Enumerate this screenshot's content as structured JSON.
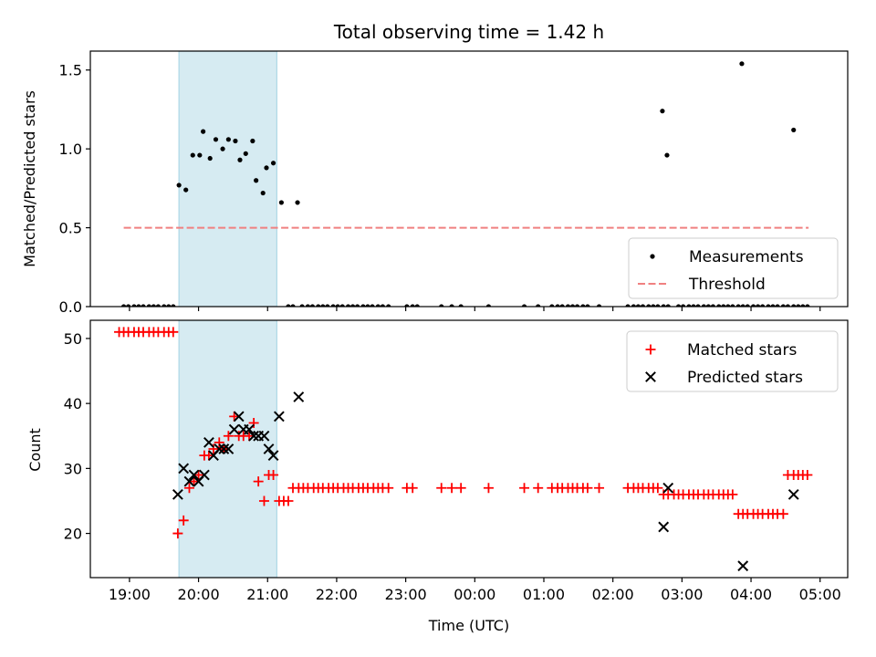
{
  "chart_data": [
    {
      "type": "scatter",
      "title": "Total observing time = 1.42 h",
      "xlabel": "",
      "ylabel": "Matched/Predicted stars",
      "ylim": [
        0,
        1.62
      ],
      "yticks": [
        "0.0",
        "0.5",
        "1.0",
        "1.5"
      ],
      "xlim": [
        "18:26",
        "05:24"
      ],
      "highlight_span": [
        "19:43",
        "21:08"
      ],
      "legend_position": "lower-right",
      "series": [
        {
          "name": "Measurements",
          "marker": "dot",
          "color": "#000000",
          "points": [
            [
              "18:55",
              0
            ],
            [
              "18:59",
              0
            ],
            [
              "19:04",
              0
            ],
            [
              "19:08",
              0
            ],
            [
              "19:12",
              0
            ],
            [
              "19:17",
              0
            ],
            [
              "19:21",
              0
            ],
            [
              "19:25",
              0
            ],
            [
              "19:30",
              0
            ],
            [
              "19:34",
              0
            ],
            [
              "19:38",
              0
            ],
            [
              "19:43",
              0.77
            ],
            [
              "19:49",
              0.74
            ],
            [
              "19:55",
              0.96
            ],
            [
              "20:01",
              0.96
            ],
            [
              "20:04",
              1.11
            ],
            [
              "20:10",
              0.94
            ],
            [
              "20:15",
              1.06
            ],
            [
              "20:21",
              1.0
            ],
            [
              "20:26",
              1.06
            ],
            [
              "20:32",
              1.05
            ],
            [
              "20:36",
              0.93
            ],
            [
              "20:41",
              0.97
            ],
            [
              "20:47",
              1.05
            ],
            [
              "20:50",
              0.8
            ],
            [
              "20:56",
              0.72
            ],
            [
              "20:59",
              0.88
            ],
            [
              "21:05",
              0.91
            ],
            [
              "21:12",
              0.66
            ],
            [
              "21:26",
              0.66
            ],
            [
              "21:18",
              0
            ],
            [
              "21:22",
              0
            ],
            [
              "21:30",
              0
            ],
            [
              "21:35",
              0
            ],
            [
              "21:39",
              0
            ],
            [
              "21:44",
              0
            ],
            [
              "21:48",
              0
            ],
            [
              "21:52",
              0
            ],
            [
              "21:57",
              0
            ],
            [
              "22:01",
              0
            ],
            [
              "22:05",
              0
            ],
            [
              "22:10",
              0
            ],
            [
              "22:14",
              0
            ],
            [
              "22:18",
              0
            ],
            [
              "22:23",
              0
            ],
            [
              "22:27",
              0
            ],
            [
              "22:31",
              0
            ],
            [
              "22:36",
              0
            ],
            [
              "22:40",
              0
            ],
            [
              "22:45",
              0
            ],
            [
              "23:01",
              0
            ],
            [
              "23:06",
              0
            ],
            [
              "23:10",
              0
            ],
            [
              "23:31",
              0
            ],
            [
              "23:40",
              0
            ],
            [
              "23:48",
              0
            ],
            [
              "00:12",
              0
            ],
            [
              "00:43",
              0
            ],
            [
              "00:55",
              0
            ],
            [
              "01:07",
              0
            ],
            [
              "01:12",
              0
            ],
            [
              "01:16",
              0
            ],
            [
              "01:21",
              0
            ],
            [
              "01:25",
              0
            ],
            [
              "01:29",
              0
            ],
            [
              "01:34",
              0
            ],
            [
              "01:38",
              0
            ],
            [
              "01:48",
              0
            ],
            [
              "02:13",
              0
            ],
            [
              "02:18",
              0
            ],
            [
              "02:22",
              0
            ],
            [
              "02:26",
              0
            ],
            [
              "02:31",
              0
            ],
            [
              "02:35",
              0
            ],
            [
              "02:39",
              0
            ],
            [
              "02:44",
              0
            ],
            [
              "02:48",
              0
            ],
            [
              "02:57",
              0
            ],
            [
              "03:01",
              0
            ],
            [
              "03:06",
              0
            ],
            [
              "03:10",
              0
            ],
            [
              "03:14",
              0
            ],
            [
              "03:19",
              0
            ],
            [
              "03:23",
              0
            ],
            [
              "03:27",
              0
            ],
            [
              "03:32",
              0
            ],
            [
              "03:36",
              0
            ],
            [
              "03:40",
              0
            ],
            [
              "03:44",
              0
            ],
            [
              "03:49",
              0
            ],
            [
              "03:53",
              0
            ],
            [
              "03:57",
              0
            ],
            [
              "04:02",
              0
            ],
            [
              "04:06",
              0
            ],
            [
              "04:10",
              0
            ],
            [
              "04:15",
              0
            ],
            [
              "04:19",
              0
            ],
            [
              "04:23",
              0
            ],
            [
              "04:28",
              0
            ],
            [
              "04:32",
              0
            ],
            [
              "04:37",
              0
            ],
            [
              "04:41",
              0
            ],
            [
              "04:45",
              0
            ],
            [
              "04:49",
              0
            ],
            [
              "02:43",
              1.24
            ],
            [
              "02:47",
              0.96
            ],
            [
              "03:52",
              1.54
            ],
            [
              "04:37",
              1.12
            ]
          ]
        },
        {
          "name": "Threshold",
          "marker": "dashed-line",
          "color": "#f08080",
          "x": [
            "18:55",
            "04:50"
          ],
          "y": [
            0.5,
            0.5
          ]
        }
      ]
    },
    {
      "type": "scatter",
      "title": "",
      "xlabel": "Time (UTC)",
      "ylabel": "Count",
      "ylim": [
        13.2,
        52.8
      ],
      "yticks": [
        "20",
        "30",
        "40",
        "50"
      ],
      "xlim": [
        "18:26",
        "05:24"
      ],
      "xticks": [
        "19:00",
        "20:00",
        "21:00",
        "22:00",
        "23:00",
        "00:00",
        "01:00",
        "02:00",
        "03:00",
        "04:00",
        "05:00"
      ],
      "highlight_span": [
        "19:43",
        "21:08"
      ],
      "legend_position": "upper-right",
      "series": [
        {
          "name": "Matched stars",
          "marker": "plus",
          "color": "#ff0000",
          "points": [
            [
              "18:51",
              51
            ],
            [
              "18:55",
              51
            ],
            [
              "18:59",
              51
            ],
            [
              "19:04",
              51
            ],
            [
              "19:08",
              51
            ],
            [
              "19:12",
              51
            ],
            [
              "19:17",
              51
            ],
            [
              "19:21",
              51
            ],
            [
              "19:25",
              51
            ],
            [
              "19:30",
              51
            ],
            [
              "19:34",
              51
            ],
            [
              "19:38",
              51
            ],
            [
              "19:42",
              20
            ],
            [
              "19:47",
              22
            ],
            [
              "19:52",
              27
            ],
            [
              "19:56",
              28
            ],
            [
              "20:00",
              29
            ],
            [
              "20:05",
              32
            ],
            [
              "20:09",
              32
            ],
            [
              "20:13",
              33
            ],
            [
              "20:18",
              34
            ],
            [
              "20:22",
              33
            ],
            [
              "20:26",
              35
            ],
            [
              "20:31",
              38
            ],
            [
              "20:35",
              35
            ],
            [
              "20:39",
              35
            ],
            [
              "20:44",
              35
            ],
            [
              "20:48",
              37
            ],
            [
              "20:52",
              28
            ],
            [
              "20:57",
              25
            ],
            [
              "21:01",
              29
            ],
            [
              "21:05",
              29
            ],
            [
              "21:10",
              25
            ],
            [
              "21:14",
              25
            ],
            [
              "21:18",
              25
            ],
            [
              "21:22",
              27
            ],
            [
              "21:27",
              27
            ],
            [
              "21:31",
              27
            ],
            [
              "21:35",
              27
            ],
            [
              "21:40",
              27
            ],
            [
              "21:44",
              27
            ],
            [
              "21:48",
              27
            ],
            [
              "21:53",
              27
            ],
            [
              "21:57",
              27
            ],
            [
              "22:01",
              27
            ],
            [
              "22:06",
              27
            ],
            [
              "22:10",
              27
            ],
            [
              "22:14",
              27
            ],
            [
              "22:19",
              27
            ],
            [
              "22:23",
              27
            ],
            [
              "22:27",
              27
            ],
            [
              "22:32",
              27
            ],
            [
              "22:36",
              27
            ],
            [
              "22:40",
              27
            ],
            [
              "22:45",
              27
            ],
            [
              "23:01",
              27
            ],
            [
              "23:06",
              27
            ],
            [
              "23:31",
              27
            ],
            [
              "23:40",
              27
            ],
            [
              "23:48",
              27
            ],
            [
              "00:12",
              27
            ],
            [
              "00:43",
              27
            ],
            [
              "00:55",
              27
            ],
            [
              "01:07",
              27
            ],
            [
              "01:12",
              27
            ],
            [
              "01:16",
              27
            ],
            [
              "01:21",
              27
            ],
            [
              "01:25",
              27
            ],
            [
              "01:29",
              27
            ],
            [
              "01:34",
              27
            ],
            [
              "01:38",
              27
            ],
            [
              "01:48",
              27
            ],
            [
              "02:13",
              27
            ],
            [
              "02:18",
              27
            ],
            [
              "02:22",
              27
            ],
            [
              "02:26",
              27
            ],
            [
              "02:31",
              27
            ],
            [
              "02:35",
              27
            ],
            [
              "02:39",
              27
            ],
            [
              "02:44",
              26
            ],
            [
              "02:48",
              26
            ],
            [
              "02:53",
              26
            ],
            [
              "02:57",
              26
            ],
            [
              "03:01",
              26
            ],
            [
              "03:06",
              26
            ],
            [
              "03:10",
              26
            ],
            [
              "03:14",
              26
            ],
            [
              "03:19",
              26
            ],
            [
              "03:23",
              26
            ],
            [
              "03:27",
              26
            ],
            [
              "03:32",
              26
            ],
            [
              "03:36",
              26
            ],
            [
              "03:40",
              26
            ],
            [
              "03:44",
              26
            ],
            [
              "03:49",
              23
            ],
            [
              "03:53",
              23
            ],
            [
              "03:57",
              23
            ],
            [
              "04:02",
              23
            ],
            [
              "04:06",
              23
            ],
            [
              "04:10",
              23
            ],
            [
              "04:15",
              23
            ],
            [
              "04:19",
              23
            ],
            [
              "04:23",
              23
            ],
            [
              "04:28",
              23
            ],
            [
              "04:32",
              29
            ],
            [
              "04:37",
              29
            ],
            [
              "04:41",
              29
            ],
            [
              "04:45",
              29
            ],
            [
              "04:49",
              29
            ]
          ]
        },
        {
          "name": "Predicted stars",
          "marker": "x",
          "color": "#000000",
          "points": [
            [
              "19:42",
              26
            ],
            [
              "19:47",
              30
            ],
            [
              "19:52",
              28
            ],
            [
              "19:56",
              29
            ],
            [
              "20:00",
              28
            ],
            [
              "20:05",
              29
            ],
            [
              "20:09",
              34
            ],
            [
              "20:13",
              32
            ],
            [
              "20:18",
              33
            ],
            [
              "20:22",
              33
            ],
            [
              "20:26",
              33
            ],
            [
              "20:31",
              36
            ],
            [
              "20:35",
              38
            ],
            [
              "20:39",
              36
            ],
            [
              "20:44",
              36
            ],
            [
              "20:48",
              35
            ],
            [
              "20:52",
              35
            ],
            [
              "20:57",
              35
            ],
            [
              "21:01",
              33
            ],
            [
              "21:05",
              32
            ],
            [
              "21:10",
              38
            ],
            [
              "21:27",
              41
            ],
            [
              "02:44",
              21
            ],
            [
              "02:48",
              27
            ],
            [
              "03:53",
              15
            ],
            [
              "04:37",
              26
            ]
          ]
        }
      ]
    }
  ]
}
